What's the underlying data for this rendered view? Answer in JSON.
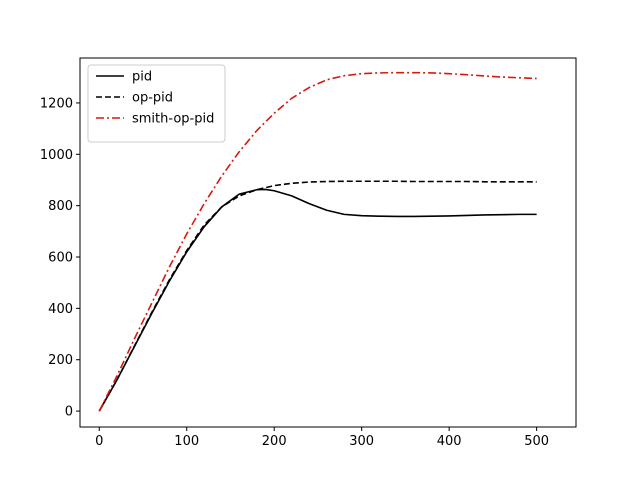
{
  "chart_data": {
    "type": "line",
    "title": "",
    "xlabel": "",
    "ylabel": "",
    "xlim": [
      -22,
      545
    ],
    "ylim": [
      -62,
      1375
    ],
    "xticks": [
      0,
      100,
      200,
      300,
      400,
      500
    ],
    "yticks": [
      0,
      200,
      400,
      600,
      800,
      1000,
      1200
    ],
    "grid": false,
    "legend_position": "upper-left",
    "series": [
      {
        "name": "pid",
        "color": "#000000",
        "dash": "solid",
        "x": [
          0,
          20,
          40,
          60,
          80,
          100,
          120,
          140,
          160,
          180,
          190,
          200,
          220,
          240,
          260,
          280,
          300,
          320,
          340,
          360,
          380,
          400,
          420,
          440,
          460,
          480,
          500
        ],
        "y": [
          0,
          120,
          250,
          380,
          505,
          620,
          718,
          795,
          845,
          862,
          863,
          858,
          838,
          808,
          782,
          766,
          761,
          759,
          758,
          758,
          759,
          760,
          762,
          764,
          765,
          766,
          766
        ]
      },
      {
        "name": "op-pid",
        "color": "#000000",
        "dash": "dashed",
        "x": [
          0,
          20,
          40,
          60,
          80,
          100,
          120,
          140,
          160,
          180,
          200,
          220,
          240,
          260,
          280,
          300,
          320,
          340,
          360,
          380,
          400,
          420,
          440,
          460,
          480,
          500
        ],
        "y": [
          0,
          120,
          252,
          384,
          510,
          625,
          725,
          795,
          838,
          862,
          878,
          887,
          892,
          894,
          895,
          895,
          895,
          895,
          894,
          894,
          894,
          894,
          893,
          893,
          893,
          893
        ]
      },
      {
        "name": "smith-op-pid",
        "color": "#d61a10",
        "dash": "dashdot",
        "x": [
          0,
          20,
          40,
          60,
          80,
          100,
          120,
          140,
          160,
          180,
          200,
          220,
          240,
          260,
          280,
          300,
          320,
          340,
          360,
          380,
          400,
          420,
          440,
          460,
          480,
          500
        ],
        "y": [
          0,
          135,
          280,
          420,
          560,
          690,
          808,
          915,
          1010,
          1092,
          1160,
          1218,
          1260,
          1290,
          1306,
          1314,
          1317,
          1318,
          1318,
          1317,
          1314,
          1310,
          1305,
          1301,
          1298,
          1295
        ]
      }
    ]
  }
}
